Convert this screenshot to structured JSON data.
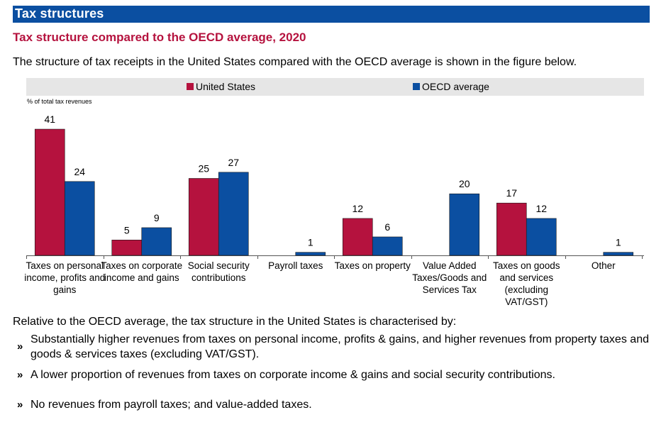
{
  "section": {
    "title": "Tax structures"
  },
  "subtitle": "Tax structure compared to the OECD average, 2020",
  "intro": "The structure of tax receipts in the United States compared with the OECD average is shown in the figure below.",
  "colors": {
    "united_states": "#b5123e",
    "oecd": "#0b4fa1",
    "header": "#0b4fa1",
    "subtitle": "#b5123e"
  },
  "chart_data": {
    "type": "bar",
    "ylabel": "% of total tax revenues",
    "categories": [
      [
        "Taxes on personal",
        "income, profits and",
        "gains"
      ],
      [
        "Taxes on corporate",
        "income and gains"
      ],
      [
        "Social security",
        "contributions"
      ],
      [
        "Payroll taxes"
      ],
      [
        "Taxes on property"
      ],
      [
        "Value Added",
        "Taxes/Goods and",
        "Services Tax"
      ],
      [
        "Taxes on goods",
        "and services",
        "(excluding",
        "VAT/GST)"
      ],
      [
        "Other"
      ]
    ],
    "series": [
      {
        "name": "United States",
        "values": [
          41,
          5,
          25,
          0,
          12,
          0,
          17,
          0
        ]
      },
      {
        "name": "OECD average",
        "values": [
          24,
          9,
          27,
          1,
          6,
          20,
          12,
          1
        ]
      }
    ],
    "data_labels": [
      [
        "41",
        "5",
        "25",
        "",
        "12",
        "",
        "17",
        ""
      ],
      [
        "24",
        "9",
        "27",
        "1",
        "6",
        "20",
        "12",
        "1"
      ]
    ],
    "ylim": [
      0,
      45
    ],
    "legend_position": "top",
    "grid": false
  },
  "summary": {
    "lead": "Relative to the OECD average, the tax structure in the United States is characterised by:",
    "marker": "»",
    "bullets": [
      "Substantially higher revenues from taxes on personal income, profits & gains, and higher revenues from property taxes and goods & services taxes (excluding VAT/GST).",
      "A lower proportion of revenues from taxes on corporate income & gains and social security contributions.",
      "No revenues from payroll taxes; and value-added taxes."
    ]
  }
}
